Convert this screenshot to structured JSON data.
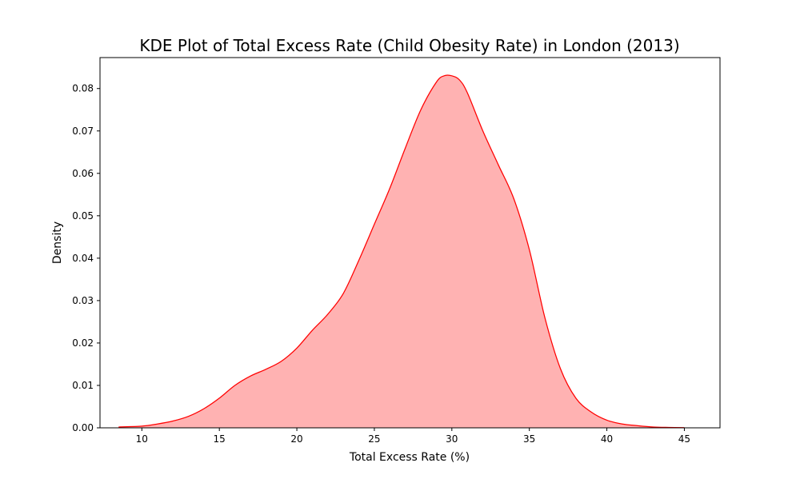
{
  "chart_data": {
    "type": "area",
    "title": "KDE Plot of Total Excess Rate (Child Obesity Rate) in London (2013)",
    "xlabel": "Total Excess Rate (%)",
    "ylabel": "Density",
    "xlim": [
      7.3,
      47.3
    ],
    "ylim": [
      0,
      0.0873
    ],
    "grid": false,
    "legend": "none",
    "colors": {
      "line": "#ff0000",
      "fill": "#ff0000",
      "fill_opacity": 0.3
    },
    "x_ticks": [
      10,
      15,
      20,
      25,
      30,
      35,
      40,
      45
    ],
    "x_tick_labels": [
      "10",
      "15",
      "20",
      "25",
      "30",
      "35",
      "40",
      "45"
    ],
    "y_ticks": [
      0,
      0.01,
      0.02,
      0.03,
      0.04,
      0.05,
      0.06,
      0.07,
      0.08
    ],
    "y_tick_labels": [
      "0.00",
      "0.01",
      "0.02",
      "0.03",
      "0.04",
      "0.05",
      "0.06",
      "0.07",
      "0.08"
    ],
    "series": [
      {
        "x": [
          8.5,
          10,
          11,
          12,
          13,
          14,
          15,
          16,
          17,
          18,
          19,
          20,
          21,
          22,
          23,
          24,
          25,
          26,
          27,
          28,
          29,
          29.5,
          30,
          30.5,
          31,
          32,
          33,
          34,
          35,
          36,
          37,
          38,
          39,
          40,
          41,
          42,
          43,
          44,
          45
        ],
        "y": [
          0.0002,
          0.0004,
          0.0009,
          0.0016,
          0.0027,
          0.0045,
          0.007,
          0.01,
          0.0122,
          0.0138,
          0.0157,
          0.0188,
          0.023,
          0.0268,
          0.0317,
          0.0395,
          0.048,
          0.0565,
          0.066,
          0.075,
          0.0815,
          0.083,
          0.083,
          0.082,
          0.079,
          0.07,
          0.062,
          0.054,
          0.042,
          0.026,
          0.014,
          0.007,
          0.0037,
          0.0018,
          0.0009,
          0.0005,
          0.0002,
          0.0001,
          5e-05
        ]
      }
    ]
  }
}
